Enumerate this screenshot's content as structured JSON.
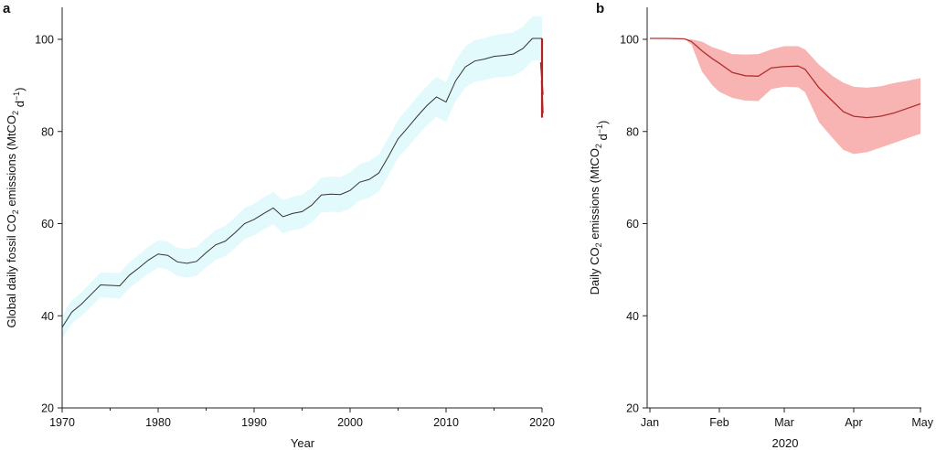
{
  "chart_data": [
    {
      "panel": "a",
      "type": "line",
      "xlabel": "Year",
      "ylabel": "Global daily fossil CO2 emissions (MtCO2 d−1)",
      "xlim": [
        1970,
        2020
      ],
      "ylim": [
        20,
        105
      ],
      "xticks": [
        "1970",
        "1980",
        "1990",
        "2000",
        "2010",
        "2020"
      ],
      "yticks": [
        "20",
        "40",
        "60",
        "80",
        "100"
      ],
      "grid": false,
      "colors": {
        "line": "#333333",
        "band": "#e3fafc",
        "highlight": "#b22222"
      },
      "series": [
        {
          "x": [
            1970,
            1971,
            1972,
            1973,
            1974,
            1975,
            1976,
            1977,
            1978,
            1979,
            1980,
            1981,
            1982,
            1983,
            1984,
            1985,
            1986,
            1987,
            1988,
            1989,
            1990,
            1991,
            1992,
            1993,
            1994,
            1995,
            1996,
            1997,
            1998,
            1999,
            2000,
            2001,
            2002,
            2003,
            2004,
            2005,
            2006,
            2007,
            2008,
            2009,
            2010,
            2011,
            2012,
            2013,
            2014,
            2015,
            2016,
            2017,
            2018,
            2019
          ],
          "y": [
            37.5,
            40.8,
            42.5,
            44.6,
            46.7,
            46.6,
            46.5,
            48.8,
            50.4,
            52.1,
            53.4,
            53.1,
            51.7,
            51.4,
            51.8,
            53.7,
            55.4,
            56.2,
            58.0,
            60.0,
            60.9,
            62.2,
            63.4,
            61.5,
            62.2,
            62.6,
            64.0,
            66.2,
            66.4,
            66.3,
            67.2,
            69.0,
            69.6,
            71.0,
            74.6,
            78.4,
            80.8,
            83.3,
            85.6,
            87.5,
            86.4,
            91.0,
            94.0,
            95.3,
            95.7,
            96.3,
            96.5,
            96.8,
            98.0,
            100.2
          ]
        },
        {
          "x": [
            2019,
            2020
          ],
          "y": [
            100.2,
            100.2
          ],
          "ymin_2020": 83.0
        }
      ],
      "band_halfwidth": [
        2.5,
        4.8
      ]
    },
    {
      "panel": "b",
      "type": "line",
      "xlabel": "2020",
      "ylabel": "Daily CO2 emissions (MtCO2 d−1)",
      "xticks": [
        "Jan",
        "Feb",
        "Mar",
        "Apr",
        "May"
      ],
      "yticks": [
        "20",
        "40",
        "60",
        "80",
        "100"
      ],
      "ylim": [
        20,
        107
      ],
      "grid": false,
      "colors": {
        "line": "#b03030",
        "band": "#f8b3b3"
      },
      "series": [
        {
          "x": [
            0,
            0.25,
            0.5,
            0.6,
            0.75,
            0.9,
            1.0,
            1.2,
            1.4,
            1.6,
            1.8,
            2.0,
            2.2,
            2.3,
            2.5,
            2.7,
            2.85,
            3.0,
            3.2,
            3.4,
            3.6,
            3.8,
            4.0
          ],
          "y": [
            100.2,
            100.2,
            100.1,
            99.5,
            97.5,
            95.8,
            94.8,
            92.8,
            92.1,
            92.0,
            93.8,
            94.1,
            94.2,
            93.5,
            89.5,
            86.5,
            84.3,
            83.3,
            83.0,
            83.3,
            84.0,
            85.0,
            86.0
          ],
          "lower": [
            100.2,
            100.2,
            100.1,
            98.8,
            93.0,
            90.0,
            88.6,
            87.3,
            86.7,
            86.6,
            89.2,
            89.7,
            89.6,
            88.5,
            82.0,
            78.5,
            76.0,
            75.1,
            75.5,
            76.5,
            77.5,
            78.5,
            79.5
          ],
          "upper": [
            100.2,
            100.2,
            100.1,
            100.0,
            99.5,
            98.3,
            97.8,
            96.8,
            96.7,
            96.8,
            97.8,
            98.5,
            98.5,
            97.8,
            94.5,
            92.0,
            90.6,
            89.7,
            89.5,
            89.8,
            90.5,
            91.0,
            91.6
          ]
        }
      ]
    }
  ],
  "labels": {
    "panel_a": "a",
    "panel_b": "b",
    "a_xlabel": "Year",
    "b_xlabel": "2020"
  }
}
